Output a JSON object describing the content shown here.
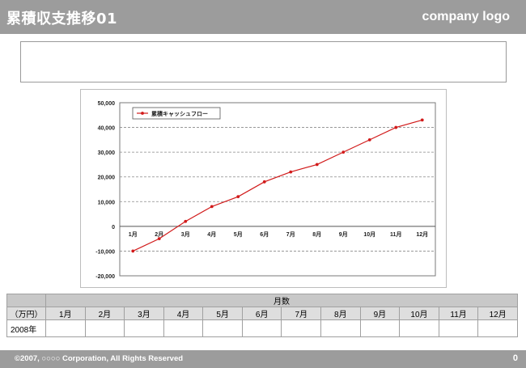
{
  "header": {
    "title": "累積収支推移01",
    "logo": "company logo"
  },
  "table": {
    "group_header": "月数",
    "unit_label": "（万円）",
    "columns": [
      "1月",
      "2月",
      "3月",
      "4月",
      "5月",
      "6月",
      "7月",
      "8月",
      "9月",
      "10月",
      "11月",
      "12月"
    ],
    "rows": [
      {
        "label": "2008年",
        "cells": [
          "",
          "",
          "",
          "",
          "",
          "",
          "",
          "",
          "",
          "",
          "",
          ""
        ]
      }
    ]
  },
  "footer": {
    "copyright": "©2007, ○○○○ Corporation, All Rights Reserved",
    "page": "0"
  },
  "chart_data": {
    "type": "line",
    "title": "",
    "xlabel": "",
    "ylabel": "",
    "categories": [
      "1月",
      "2月",
      "3月",
      "4月",
      "5月",
      "6月",
      "7月",
      "8月",
      "9月",
      "10月",
      "11月",
      "12月"
    ],
    "series": [
      {
        "name": "累積キャッシュフロー",
        "values": [
          -10000,
          -5000,
          2000,
          8000,
          12000,
          18000,
          22000,
          25000,
          30000,
          35000,
          40000,
          43000
        ],
        "color": "#d11a1a"
      }
    ],
    "ylim": [
      -20000,
      50000
    ],
    "yticks": [
      50000,
      40000,
      30000,
      20000,
      10000,
      0,
      -10000,
      -20000
    ],
    "ytick_labels": [
      "50,000",
      "40,000",
      "30,000",
      "20,000",
      "10,000",
      "0",
      "-10,000",
      "-20,000"
    ],
    "grid": true,
    "legend_position": "top-left"
  }
}
